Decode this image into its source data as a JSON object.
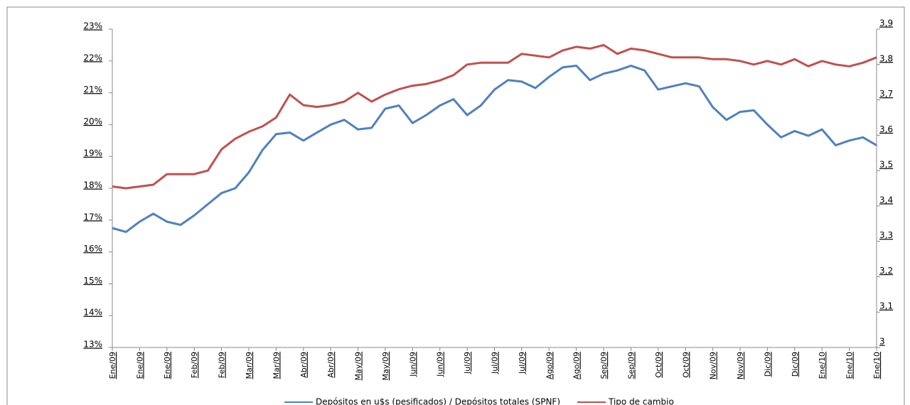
{
  "chart_data": {
    "type": "line",
    "categories": [
      "Ene/09",
      null,
      "Ene/09",
      null,
      "Ene/09",
      null,
      "Feb/09",
      null,
      "Feb/09",
      null,
      "Mar/09",
      null,
      "Mar/09",
      null,
      "Abr/09",
      null,
      "Abr/09",
      null,
      "May/09",
      null,
      "May/09",
      null,
      "Jun/09",
      null,
      "Jun/09",
      null,
      "Jul/09",
      null,
      "Jul/09",
      null,
      "Jul/09",
      null,
      "Ago/09",
      null,
      "Ago/09",
      null,
      "Sep/09",
      null,
      "Sep/09",
      null,
      "Oct/09",
      null,
      "Oct/09",
      null,
      "Nov/09",
      null,
      "Nov/09",
      null,
      "Dic/09",
      null,
      "Dic/09",
      null,
      "Ene/10",
      null,
      "Ene/10",
      null,
      "Ene/10"
    ],
    "series": [
      {
        "name": "Depósitos en u$s (pesificados) / Depósitos totales (SPNF)",
        "color": "#4f81bd",
        "axis": "y",
        "values": [
          16.75,
          16.63,
          16.95,
          17.2,
          16.95,
          16.85,
          17.15,
          17.5,
          17.85,
          18.0,
          18.5,
          19.2,
          19.7,
          19.75,
          19.5,
          19.75,
          20.0,
          20.15,
          19.85,
          19.9,
          20.5,
          20.6,
          20.05,
          20.3,
          20.6,
          20.8,
          20.3,
          20.6,
          21.1,
          21.4,
          21.35,
          21.15,
          21.5,
          21.8,
          21.85,
          21.4,
          21.6,
          21.7,
          21.85,
          21.7,
          21.1,
          21.2,
          21.3,
          21.2,
          20.55,
          20.15,
          20.4,
          20.45,
          20.0,
          19.6,
          19.8,
          19.65,
          19.85,
          19.35,
          19.5,
          19.6,
          19.35
        ]
      },
      {
        "name": "Tipo de cambio",
        "color": "#c0504d",
        "axis": "y2",
        "values": [
          3.455,
          3.45,
          3.455,
          3.46,
          3.49,
          3.49,
          3.49,
          3.5,
          3.56,
          3.59,
          3.61,
          3.625,
          3.65,
          3.715,
          3.685,
          3.68,
          3.685,
          3.695,
          3.72,
          3.695,
          3.715,
          3.73,
          3.74,
          3.745,
          3.755,
          3.77,
          3.8,
          3.805,
          3.805,
          3.805,
          3.83,
          3.825,
          3.82,
          3.84,
          3.85,
          3.845,
          3.855,
          3.83,
          3.845,
          3.84,
          3.83,
          3.82,
          3.82,
          3.82,
          3.815,
          3.815,
          3.81,
          3.8,
          3.81,
          3.8,
          3.815,
          3.795,
          3.81,
          3.8,
          3.795,
          3.805,
          3.82
        ]
      }
    ],
    "ylim": [
      13,
      23
    ],
    "yticks": [
      {
        "value": 13,
        "label": "13%"
      },
      {
        "value": 14,
        "label": "14%"
      },
      {
        "value": 15,
        "label": "15%"
      },
      {
        "value": 16,
        "label": "16%"
      },
      {
        "value": 17,
        "label": "17%"
      },
      {
        "value": 18,
        "label": "18%"
      },
      {
        "value": 19,
        "label": "19%"
      },
      {
        "value": 20,
        "label": "20%"
      },
      {
        "value": 21,
        "label": "21%"
      },
      {
        "value": 22,
        "label": "22%"
      },
      {
        "value": 23,
        "label": "23%"
      }
    ],
    "y2lim": [
      3,
      3.9
    ],
    "y2ticks": [
      3,
      {
        "value": 3.1,
        "label": "3,1"
      },
      {
        "value": 3.2,
        "label": "3,2"
      },
      {
        "value": 3.3,
        "label": "3,3"
      },
      {
        "value": 3.4,
        "label": "3,4"
      },
      {
        "value": 3.5,
        "label": "3,5"
      },
      {
        "value": 3.6,
        "label": "3,6"
      },
      {
        "value": 3.7,
        "label": "3,7"
      },
      {
        "value": 3.8,
        "label": "3,8"
      },
      {
        "value": 3.9,
        "label": "3,9"
      }
    ],
    "legend": "bottom"
  }
}
